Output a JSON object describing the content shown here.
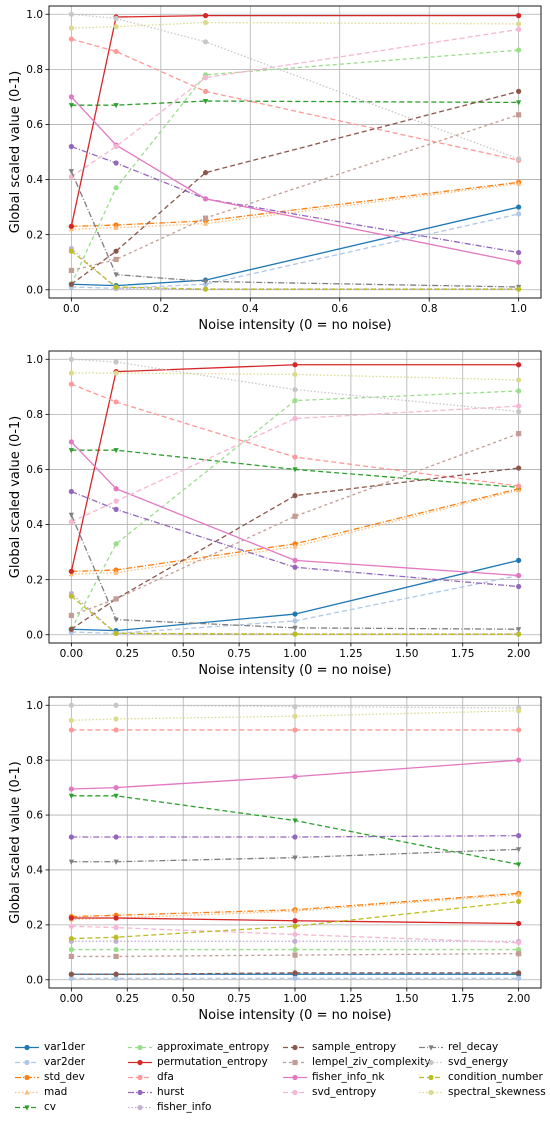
{
  "colors": {
    "var1der": "#1f77b4",
    "var2der": "#aec7e8",
    "std_dev": "#ff7f0e",
    "mad": "#ffbb78",
    "cv": "#2ca02c",
    "approximate_entropy": "#98df8a",
    "permutation_entropy": "#d62728",
    "dfa": "#ff9896",
    "hurst": "#9467bd",
    "fisher_info": "#c5b0d5",
    "sample_entropy": "#8c564b",
    "lempel_ziv_complexity": "#c49c94",
    "fisher_info_nk": "#e377c2",
    "svd_entropy": "#f7b6d2",
    "rel_decay": "#7f7f7f",
    "svd_energy": "#c7c7c7",
    "condition_number": "#bcbd22",
    "spectral_skewness": "#dbdb8d"
  },
  "legend": {
    "columns": [
      [
        "var1der",
        "var2der",
        "std_dev",
        "mad",
        "cv"
      ],
      [
        "approximate_entropy",
        "permutation_entropy",
        "dfa",
        "hurst",
        "fisher_info"
      ],
      [
        "sample_entropy",
        "lempel_ziv_complexity",
        "fisher_info_nk",
        "svd_entropy"
      ],
      [
        "rel_decay",
        "svd_energy",
        "condition_number",
        "spectral_skewness"
      ]
    ]
  },
  "chart_data": [
    {
      "type": "line",
      "xlabel": "Noise intensity (0 = no noise)",
      "ylabel": "Global scaled value (0-1)",
      "xlim": [
        -0.05,
        1.05
      ],
      "ylim": [
        -0.03,
        1.03
      ],
      "xticks": [
        "0.0",
        "0.2",
        "0.4",
        "0.6",
        "0.8",
        "1.0"
      ],
      "yticks": [
        "0.0",
        "0.2",
        "0.4",
        "0.6",
        "0.8",
        "1.0"
      ],
      "grid": true,
      "x": [
        0,
        0.1,
        0.3,
        1.0
      ],
      "series": [
        {
          "name": "var1der",
          "values": [
            0.02,
            0.015,
            0.035,
            0.3
          ]
        },
        {
          "name": "var2der",
          "values": [
            0.01,
            0.005,
            0.02,
            0.275
          ]
        },
        {
          "name": "std_dev",
          "values": [
            0.23,
            0.235,
            0.25,
            0.39
          ]
        },
        {
          "name": "mad",
          "values": [
            0.22,
            0.225,
            0.24,
            0.385
          ]
        },
        {
          "name": "cv",
          "values": [
            0.67,
            0.67,
            0.685,
            0.68
          ]
        },
        {
          "name": "approximate_entropy",
          "values": [
            0.02,
            0.37,
            0.78,
            0.87
          ]
        },
        {
          "name": "permutation_entropy",
          "values": [
            0.23,
            0.99,
            0.995,
            0.995
          ]
        },
        {
          "name": "dfa",
          "values": [
            0.91,
            0.865,
            0.72,
            0.47
          ]
        },
        {
          "name": "hurst",
          "values": [
            0.52,
            0.46,
            0.33,
            0.135
          ]
        },
        {
          "name": "fisher_info",
          "values": [
            0.15,
            0.005,
            0.003,
            0.003
          ]
        },
        {
          "name": "sample_entropy",
          "values": [
            0.02,
            0.14,
            0.425,
            0.72
          ]
        },
        {
          "name": "lempel_ziv_complexity",
          "values": [
            0.07,
            0.11,
            0.26,
            0.635
          ]
        },
        {
          "name": "fisher_info_nk",
          "values": [
            0.7,
            0.525,
            0.33,
            0.1
          ]
        },
        {
          "name": "svd_entropy",
          "values": [
            0.41,
            0.52,
            0.77,
            0.945
          ]
        },
        {
          "name": "rel_decay",
          "values": [
            0.43,
            0.055,
            0.03,
            0.01
          ]
        },
        {
          "name": "svd_energy",
          "values": [
            1.0,
            0.985,
            0.9,
            0.475
          ]
        },
        {
          "name": "condition_number",
          "values": [
            0.14,
            0.01,
            0.002,
            0.002
          ]
        },
        {
          "name": "spectral_skewness",
          "values": [
            0.95,
            0.955,
            0.97,
            0.965
          ]
        }
      ]
    },
    {
      "type": "line",
      "xlabel": "Noise intensity (0 = no noise)",
      "ylabel": "Global scaled value (0-1)",
      "xlim": [
        -0.1,
        2.1
      ],
      "ylim": [
        -0.03,
        1.03
      ],
      "xticks": [
        "0.00",
        "0.25",
        "0.50",
        "0.75",
        "1.00",
        "1.25",
        "1.50",
        "1.75",
        "2.00"
      ],
      "yticks": [
        "0.0",
        "0.2",
        "0.4",
        "0.6",
        "0.8",
        "1.0"
      ],
      "grid": true,
      "x": [
        0,
        0.2,
        1.0,
        2.0
      ],
      "series": [
        {
          "name": "var1der",
          "values": [
            0.02,
            0.015,
            0.075,
            0.27
          ]
        },
        {
          "name": "var2der",
          "values": [
            0.01,
            0.005,
            0.05,
            0.215
          ]
        },
        {
          "name": "std_dev",
          "values": [
            0.23,
            0.235,
            0.33,
            0.53
          ]
        },
        {
          "name": "mad",
          "values": [
            0.22,
            0.225,
            0.32,
            0.525
          ]
        },
        {
          "name": "cv",
          "values": [
            0.67,
            0.67,
            0.6,
            0.535
          ]
        },
        {
          "name": "approximate_entropy",
          "values": [
            0.02,
            0.33,
            0.85,
            0.885
          ]
        },
        {
          "name": "permutation_entropy",
          "values": [
            0.23,
            0.955,
            0.98,
            0.98
          ]
        },
        {
          "name": "dfa",
          "values": [
            0.91,
            0.845,
            0.645,
            0.54
          ]
        },
        {
          "name": "hurst",
          "values": [
            0.52,
            0.455,
            0.245,
            0.175
          ]
        },
        {
          "name": "fisher_info",
          "values": [
            0.15,
            0.005,
            0.003,
            0.003
          ]
        },
        {
          "name": "sample_entropy",
          "values": [
            0.02,
            0.13,
            0.505,
            0.605
          ]
        },
        {
          "name": "lempel_ziv_complexity",
          "values": [
            0.07,
            0.13,
            0.43,
            0.73
          ]
        },
        {
          "name": "fisher_info_nk",
          "values": [
            0.7,
            0.53,
            0.27,
            0.215
          ]
        },
        {
          "name": "svd_entropy",
          "values": [
            0.41,
            0.485,
            0.785,
            0.83
          ]
        },
        {
          "name": "rel_decay",
          "values": [
            0.435,
            0.055,
            0.025,
            0.02
          ]
        },
        {
          "name": "svd_energy",
          "values": [
            1.0,
            0.99,
            0.89,
            0.81
          ]
        },
        {
          "name": "condition_number",
          "values": [
            0.14,
            0.005,
            0.002,
            0.002
          ]
        },
        {
          "name": "spectral_skewness",
          "values": [
            0.95,
            0.95,
            0.945,
            0.925
          ]
        }
      ]
    },
    {
      "type": "line",
      "xlabel": "Noise intensity (0 = no noise)",
      "ylabel": "Global scaled value (0-1)",
      "xlim": [
        -0.1,
        2.1
      ],
      "ylim": [
        -0.03,
        1.03
      ],
      "xticks": [
        "0.00",
        "0.25",
        "0.50",
        "0.75",
        "1.00",
        "1.25",
        "1.50",
        "1.75",
        "2.00"
      ],
      "yticks": [
        "0.0",
        "0.2",
        "0.4",
        "0.6",
        "0.8",
        "1.0"
      ],
      "grid": true,
      "x": [
        0,
        0.2,
        1.0,
        2.0
      ],
      "series": [
        {
          "name": "var1der",
          "values": [
            0.02,
            0.02,
            0.02,
            0.02
          ]
        },
        {
          "name": "var2der",
          "values": [
            0.005,
            0.005,
            0.005,
            0.005
          ]
        },
        {
          "name": "std_dev",
          "values": [
            0.23,
            0.235,
            0.255,
            0.315
          ]
        },
        {
          "name": "mad",
          "values": [
            0.22,
            0.225,
            0.25,
            0.31
          ]
        },
        {
          "name": "cv",
          "values": [
            0.67,
            0.67,
            0.58,
            0.42
          ]
        },
        {
          "name": "approximate_entropy",
          "values": [
            0.11,
            0.11,
            0.11,
            0.11
          ]
        },
        {
          "name": "permutation_entropy",
          "values": [
            0.225,
            0.225,
            0.215,
            0.205
          ]
        },
        {
          "name": "dfa",
          "values": [
            0.91,
            0.91,
            0.91,
            0.91
          ]
        },
        {
          "name": "hurst",
          "values": [
            0.52,
            0.52,
            0.52,
            0.525
          ]
        },
        {
          "name": "fisher_info",
          "values": [
            0.14,
            0.14,
            0.14,
            0.14
          ]
        },
        {
          "name": "sample_entropy",
          "values": [
            0.02,
            0.02,
            0.025,
            0.025
          ]
        },
        {
          "name": "lempel_ziv_complexity",
          "values": [
            0.085,
            0.085,
            0.09,
            0.095
          ]
        },
        {
          "name": "fisher_info_nk",
          "values": [
            0.695,
            0.7,
            0.74,
            0.8
          ]
        },
        {
          "name": "svd_entropy",
          "values": [
            0.195,
            0.19,
            0.165,
            0.135
          ]
        },
        {
          "name": "rel_decay",
          "values": [
            0.43,
            0.43,
            0.445,
            0.475
          ]
        },
        {
          "name": "svd_energy",
          "values": [
            1.0,
            1.0,
            0.995,
            0.99
          ]
        },
        {
          "name": "condition_number",
          "values": [
            0.15,
            0.155,
            0.195,
            0.285
          ]
        },
        {
          "name": "spectral_skewness",
          "values": [
            0.945,
            0.95,
            0.96,
            0.98
          ]
        }
      ]
    }
  ]
}
